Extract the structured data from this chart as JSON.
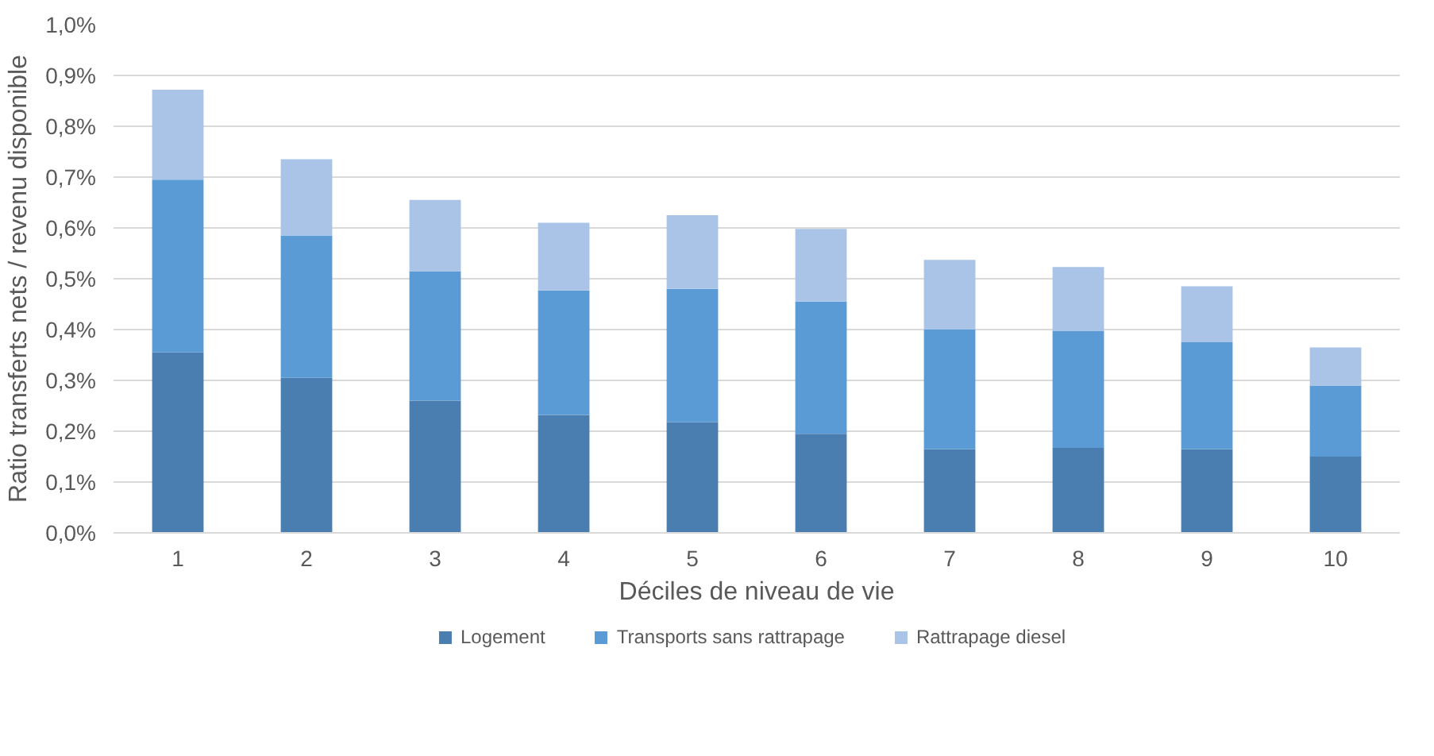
{
  "chart_data": {
    "type": "bar",
    "stacked": true,
    "xlabel": "Déciles de niveau de vie",
    "ylabel": "Ratio transferts nets / revenu disponible",
    "categories": [
      "1",
      "2",
      "3",
      "4",
      "5",
      "6",
      "7",
      "8",
      "9",
      "10"
    ],
    "series": [
      {
        "name": "Logement",
        "color": "#4a7eb0",
        "values": [
          0.355,
          0.305,
          0.26,
          0.232,
          0.218,
          0.195,
          0.165,
          0.167,
          0.165,
          0.15
        ]
      },
      {
        "name": "Transports sans rattrapage",
        "color": "#5b9bd5",
        "values": [
          0.34,
          0.28,
          0.255,
          0.245,
          0.262,
          0.26,
          0.235,
          0.23,
          0.21,
          0.14
        ]
      },
      {
        "name": "Rattrapage diesel",
        "color": "#a9c4e7",
        "values": [
          0.177,
          0.15,
          0.14,
          0.133,
          0.145,
          0.143,
          0.137,
          0.126,
          0.11,
          0.075
        ]
      }
    ],
    "ylim": [
      0,
      1.0
    ],
    "yticks": [
      {
        "value": 0,
        "label": "0,0%"
      },
      {
        "value": 0.1,
        "label": "0,1%"
      },
      {
        "value": 0.2,
        "label": "0,2%"
      },
      {
        "value": 0.3,
        "label": "0,3%"
      },
      {
        "value": 0.4,
        "label": "0,4%"
      },
      {
        "value": 0.5,
        "label": "0,5%"
      },
      {
        "value": 0.6,
        "label": "0,6%"
      },
      {
        "value": 0.7,
        "label": "0,7%"
      },
      {
        "value": 0.8,
        "label": "0,8%"
      },
      {
        "value": 0.9,
        "label": "0,9%"
      },
      {
        "value": 1.0,
        "label": "1,0%"
      }
    ],
    "grid": "y",
    "legend": "bottom"
  }
}
